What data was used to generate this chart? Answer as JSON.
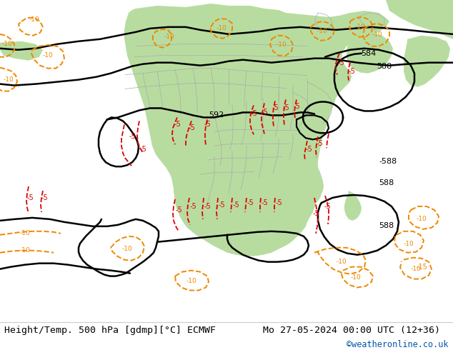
{
  "title_left": "Height/Temp. 500 hPa [gdmp][°C] ECMWF",
  "title_right": "Mo 27-05-2024 00:00 UTC (12+36)",
  "credit": "©weatheronline.co.uk",
  "bg_color": "#ffffff",
  "ocean_color": "#d8d8d8",
  "land_green_color": "#b8dca0",
  "bottom_text_color": "#000000",
  "credit_color": "#0055aa",
  "title_fontsize": 9.5,
  "credit_fontsize": 8.5,
  "fig_width": 6.34,
  "fig_height": 4.9,
  "dpi": 100,
  "black_contour_lw": 1.8,
  "red_contour_lw": 1.3,
  "orange_contour_lw": 1.4,
  "gray_boundary_lw": 0.5,
  "black_color": "#000000",
  "red_color": "#dd0000",
  "orange_color": "#ee8800",
  "gray_color": "#aaaaaa",
  "green_small_color": "#88cc44"
}
